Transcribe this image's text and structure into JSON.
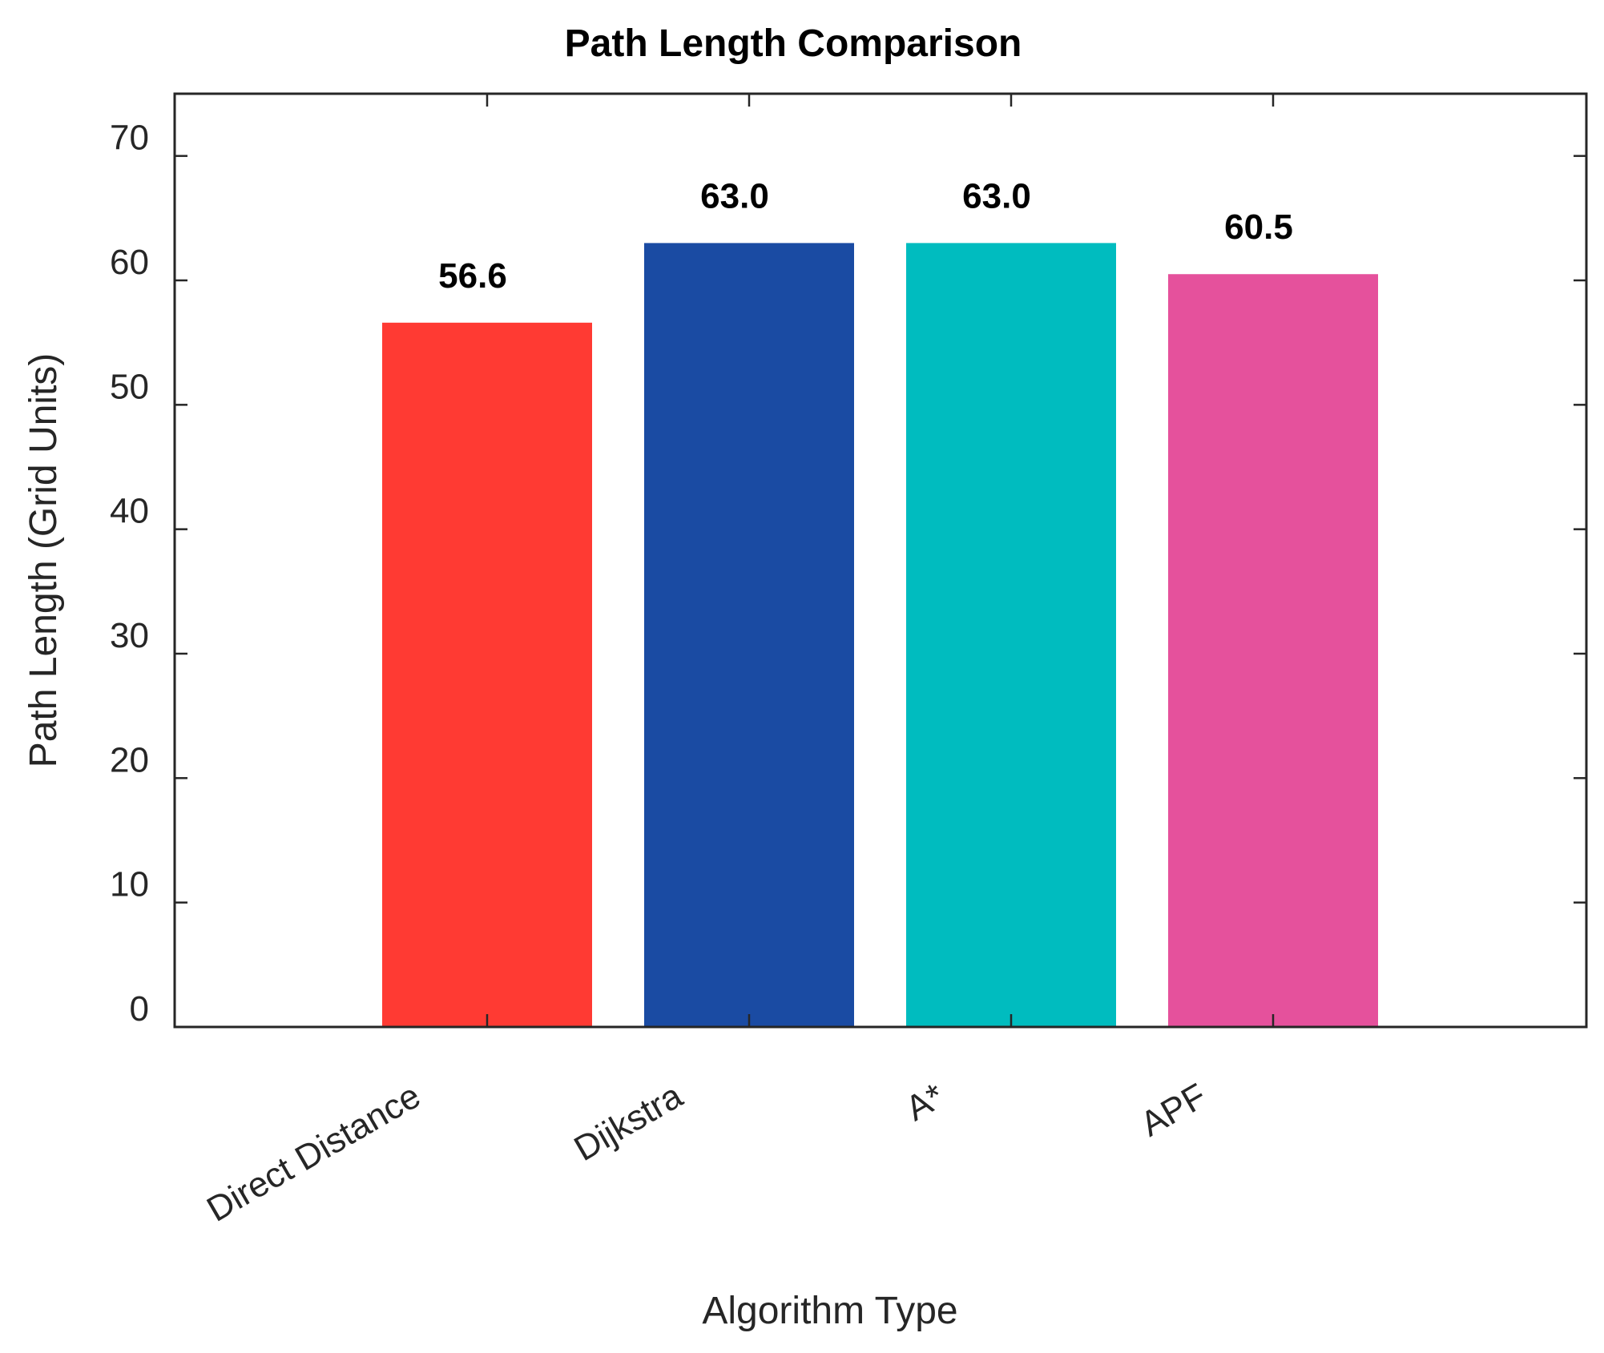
{
  "chart_data": {
    "type": "bar",
    "title": "Path Length Comparison",
    "xlabel": "Algorithm Type",
    "ylabel": "Path Length (Grid Units)",
    "categories": [
      "Direct Distance",
      "Dijkstra",
      "A*",
      "APF"
    ],
    "values": [
      56.6,
      63.0,
      63.0,
      60.5
    ],
    "data_labels": [
      "56.6",
      "63.0",
      "63.0",
      "60.5"
    ],
    "colors": [
      "#ff3a33",
      "#1a4ba3",
      "#00bcbf",
      "#e5519c"
    ],
    "ylim": [
      0,
      75
    ],
    "yticks": [
      0,
      10,
      20,
      30,
      40,
      50,
      60,
      70
    ],
    "grid": false,
    "legend": "none"
  }
}
